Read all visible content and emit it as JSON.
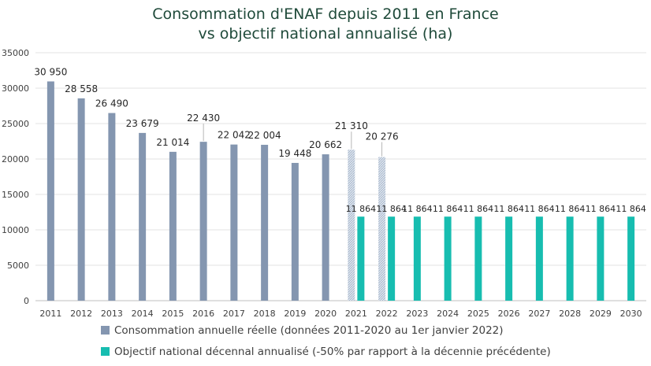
{
  "chart_data": {
    "type": "bar",
    "title_line1": "Consommation d'ENAF depuis 2011 en France",
    "title_line2": "vs objectif national annualisé (ha)",
    "categories": [
      "2011",
      "2012",
      "2013",
      "2014",
      "2015",
      "2016",
      "2017",
      "2018",
      "2019",
      "2020",
      "2021",
      "2022",
      "2023",
      "2024",
      "2025",
      "2026",
      "2027",
      "2028",
      "2029",
      "2030"
    ],
    "ylim": [
      0,
      35000
    ],
    "yticks": [
      0,
      5000,
      10000,
      15000,
      20000,
      25000,
      30000,
      35000
    ],
    "xlabel": "",
    "ylabel": "",
    "grid": true,
    "legend_position": "bottom",
    "series": [
      {
        "name": "Consommation annuelle réelle (données 2011-2020 au 1er janvier 2022)",
        "color": "#8496b0",
        "values": [
          30950,
          28558,
          26490,
          23679,
          21014,
          22430,
          22042,
          22004,
          19448,
          20662,
          21310,
          20276,
          null,
          null,
          null,
          null,
          null,
          null,
          null,
          null
        ],
        "labels": [
          "30 950",
          "28 558",
          "26 490",
          "23 679",
          "21 014",
          "22 430",
          "22 042",
          "22 004",
          "19 448",
          "20 662",
          "21 310",
          "20 276",
          "",
          "",
          "",
          "",
          "",
          "",
          "",
          ""
        ],
        "hatched_from_index": 10
      },
      {
        "name": "Objectif national décennal annualisé (-50% par rapport à la décennie précédente)",
        "color": "#17bdb0",
        "values": [
          null,
          null,
          null,
          null,
          null,
          null,
          null,
          null,
          null,
          null,
          11864,
          11864,
          11864,
          11864,
          11864,
          11864,
          11864,
          11864,
          11864,
          11864
        ],
        "labels": [
          "",
          "",
          "",
          "",
          "",
          "",
          "",
          "",
          "",
          "",
          "11 864",
          "11 864",
          "11 864",
          "11 864",
          "11 864",
          "11 864",
          "11 864",
          "11 864",
          "11 864",
          "11 864"
        ]
      }
    ]
  }
}
